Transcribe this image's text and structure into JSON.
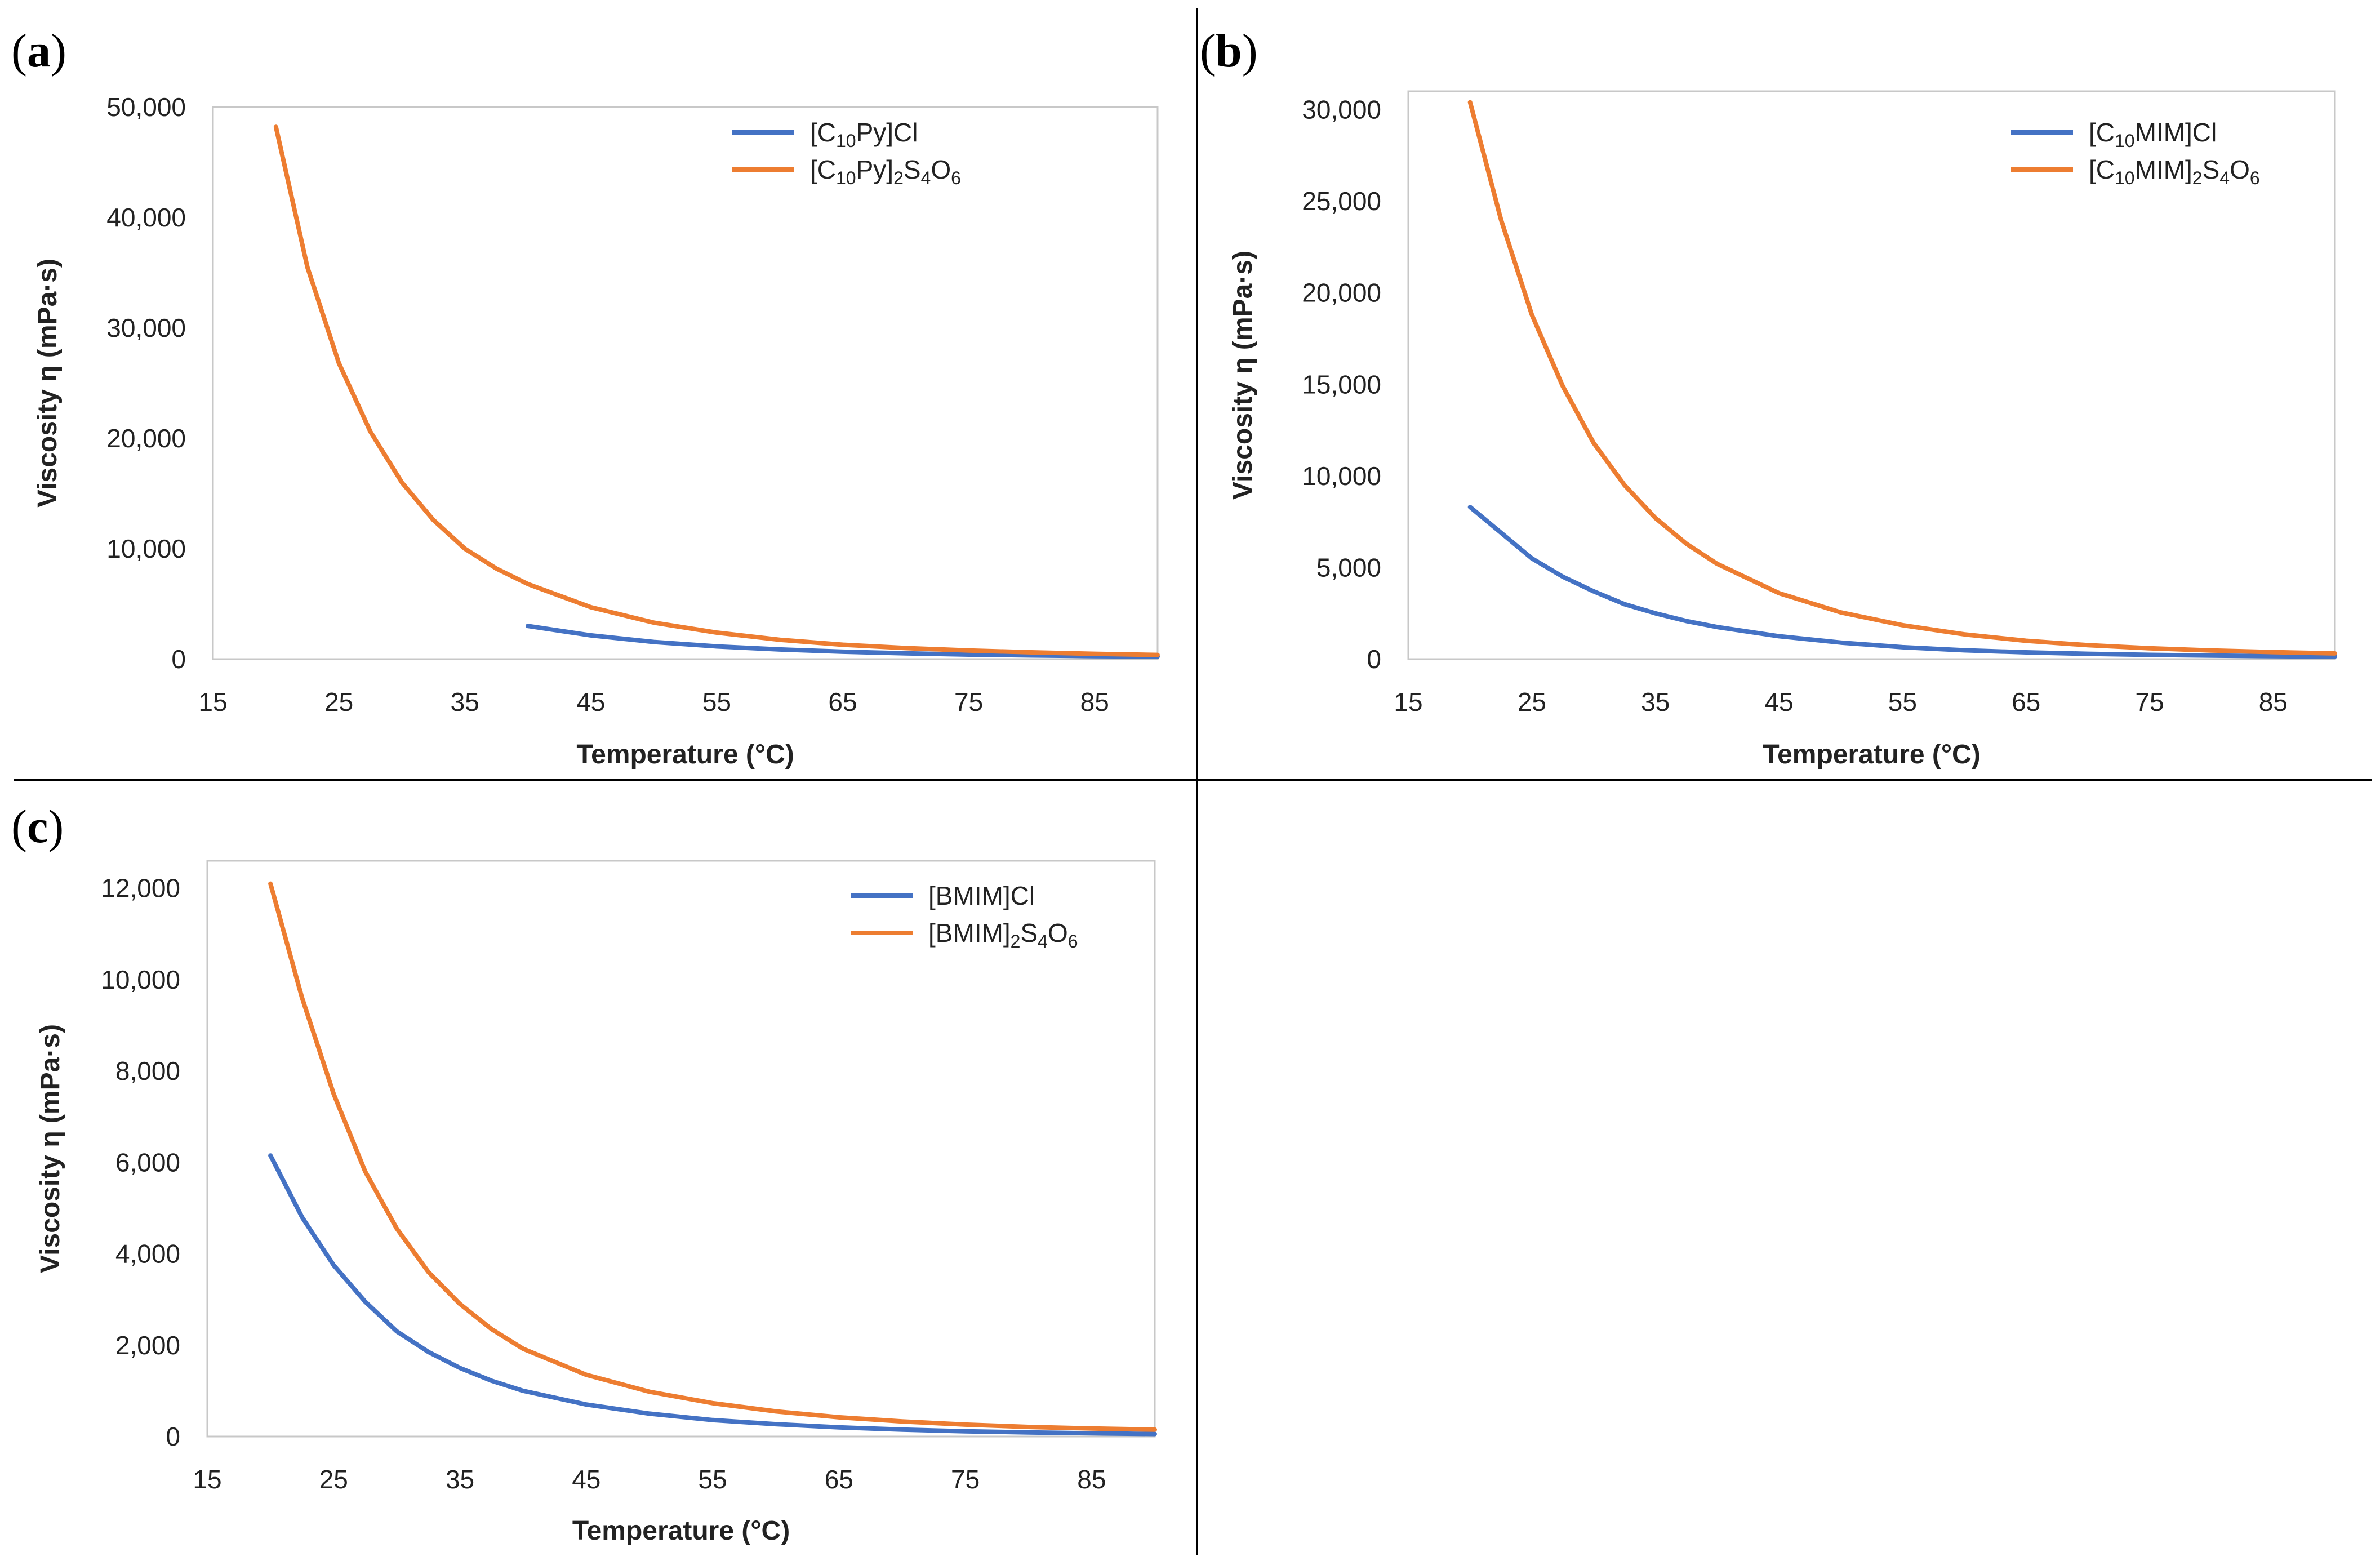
{
  "panels": [
    {
      "letter": "a"
    },
    {
      "letter": "b"
    },
    {
      "letter": "c"
    }
  ],
  "chart_data": [
    {
      "panel": "(a)",
      "type": "line",
      "xlabel": "Temperature (°C)",
      "ylabel": "Viscosity η (mPa·s)",
      "xlim": [
        15,
        90
      ],
      "ylim": [
        0,
        50000
      ],
      "xticks": [
        "15",
        "25",
        "35",
        "45",
        "55",
        "65",
        "75",
        "85"
      ],
      "yticks": [
        "0",
        "10,000",
        "20,000",
        "30,000",
        "40,000",
        "50,000"
      ],
      "ytick_values": [
        0,
        10000,
        20000,
        30000,
        40000,
        50000
      ],
      "legend_position": "top-right",
      "series": [
        {
          "name": "[C10Py]Cl",
          "legend": [
            {
              "t": "[C"
            },
            {
              "t": "10",
              "sub": true
            },
            {
              "t": "Py]Cl"
            }
          ],
          "color": "#4472C4",
          "x": [
            40,
            45,
            50,
            55,
            60,
            65,
            70,
            75,
            80,
            85,
            90
          ],
          "values": [
            3000,
            2150,
            1550,
            1150,
            870,
            670,
            520,
            410,
            330,
            270,
            230
          ]
        },
        {
          "name": "[C10Py]2S4O6",
          "legend": [
            {
              "t": "[C"
            },
            {
              "t": "10",
              "sub": true
            },
            {
              "t": "Py]"
            },
            {
              "t": "2",
              "sub": true
            },
            {
              "t": "S"
            },
            {
              "t": "4",
              "sub": true
            },
            {
              "t": "O"
            },
            {
              "t": "6",
              "sub": true
            }
          ],
          "color": "#ED7D31",
          "x": [
            20,
            22.5,
            25,
            27.5,
            30,
            32.5,
            35,
            37.5,
            40,
            45,
            50,
            55,
            60,
            65,
            70,
            75,
            80,
            85,
            90
          ],
          "values": [
            48200,
            35500,
            26800,
            20600,
            16000,
            12600,
            10000,
            8200,
            6800,
            4700,
            3300,
            2400,
            1750,
            1300,
            1000,
            780,
            610,
            480,
            380
          ]
        }
      ]
    },
    {
      "panel": "(b)",
      "type": "line",
      "xlabel": "Temperature (°C)",
      "ylabel": "Viscosity η (mPa·s)",
      "xlim": [
        15,
        90
      ],
      "ylim": [
        0,
        31000
      ],
      "xticks": [
        "15",
        "25",
        "35",
        "45",
        "55",
        "65",
        "75",
        "85"
      ],
      "yticks": [
        "0",
        "5,000",
        "10,000",
        "15,000",
        "20,000",
        "25,000",
        "30,000"
      ],
      "ytick_values": [
        0,
        5000,
        10000,
        15000,
        20000,
        25000,
        30000
      ],
      "legend_position": "top-right",
      "series": [
        {
          "name": "[C10MIM]Cl",
          "legend": [
            {
              "t": "[C"
            },
            {
              "t": "10",
              "sub": true
            },
            {
              "t": "MIM]Cl"
            }
          ],
          "color": "#4472C4",
          "x": [
            20,
            22.5,
            25,
            27.5,
            30,
            32.5,
            35,
            37.5,
            40,
            45,
            50,
            55,
            60,
            65,
            70,
            75,
            80,
            85,
            90
          ],
          "values": [
            8300,
            6900,
            5500,
            4500,
            3700,
            3000,
            2500,
            2080,
            1750,
            1250,
            900,
            650,
            480,
            370,
            290,
            230,
            190,
            160,
            140
          ]
        },
        {
          "name": "[C10MIM]2S4O6",
          "legend": [
            {
              "t": "[C"
            },
            {
              "t": "10",
              "sub": true
            },
            {
              "t": "MIM]"
            },
            {
              "t": "2",
              "sub": true
            },
            {
              "t": "S"
            },
            {
              "t": "4",
              "sub": true
            },
            {
              "t": "O"
            },
            {
              "t": "6",
              "sub": true
            }
          ],
          "color": "#ED7D31",
          "x": [
            20,
            22.5,
            25,
            27.5,
            30,
            32.5,
            35,
            37.5,
            40,
            45,
            50,
            55,
            60,
            65,
            70,
            75,
            80,
            85,
            90
          ],
          "values": [
            30400,
            24000,
            18800,
            14900,
            11800,
            9500,
            7700,
            6300,
            5200,
            3600,
            2550,
            1850,
            1350,
            1000,
            760,
            590,
            470,
            380,
            310
          ]
        }
      ]
    },
    {
      "panel": "(c)",
      "type": "line",
      "xlabel": "Temperature (°C)",
      "ylabel": "Viscosity η (mPa·s)",
      "xlim": [
        15,
        90
      ],
      "ylim": [
        0,
        12600
      ],
      "xticks": [
        "15",
        "25",
        "35",
        "45",
        "55",
        "65",
        "75",
        "85"
      ],
      "yticks": [
        "0",
        "2,000",
        "4,000",
        "6,000",
        "8,000",
        "10,000",
        "12,000"
      ],
      "ytick_values": [
        0,
        2000,
        4000,
        6000,
        8000,
        10000,
        12000
      ],
      "legend_position": "top-right",
      "series": [
        {
          "name": "[BMIM]Cl",
          "legend": [
            {
              "t": "[BMIM]Cl"
            }
          ],
          "color": "#4472C4",
          "x": [
            20,
            22.5,
            25,
            27.5,
            30,
            32.5,
            35,
            37.5,
            40,
            45,
            50,
            55,
            60,
            65,
            70,
            75,
            80,
            85,
            90
          ],
          "values": [
            6150,
            4800,
            3750,
            2950,
            2300,
            1850,
            1500,
            1220,
            1000,
            700,
            500,
            360,
            270,
            200,
            150,
            115,
            90,
            70,
            55
          ]
        },
        {
          "name": "[BMIM]2S4O6",
          "legend": [
            {
              "t": "[BMIM]"
            },
            {
              "t": "2",
              "sub": true
            },
            {
              "t": "S"
            },
            {
              "t": "4",
              "sub": true
            },
            {
              "t": "O"
            },
            {
              "t": "6",
              "sub": true
            }
          ],
          "color": "#ED7D31",
          "x": [
            20,
            22.5,
            25,
            27.5,
            30,
            32.5,
            35,
            37.5,
            40,
            45,
            50,
            55,
            60,
            65,
            70,
            75,
            80,
            85,
            90
          ],
          "values": [
            12100,
            9600,
            7500,
            5800,
            4550,
            3600,
            2900,
            2350,
            1920,
            1350,
            980,
            730,
            550,
            420,
            330,
            260,
            210,
            175,
            150
          ]
        }
      ]
    }
  ]
}
